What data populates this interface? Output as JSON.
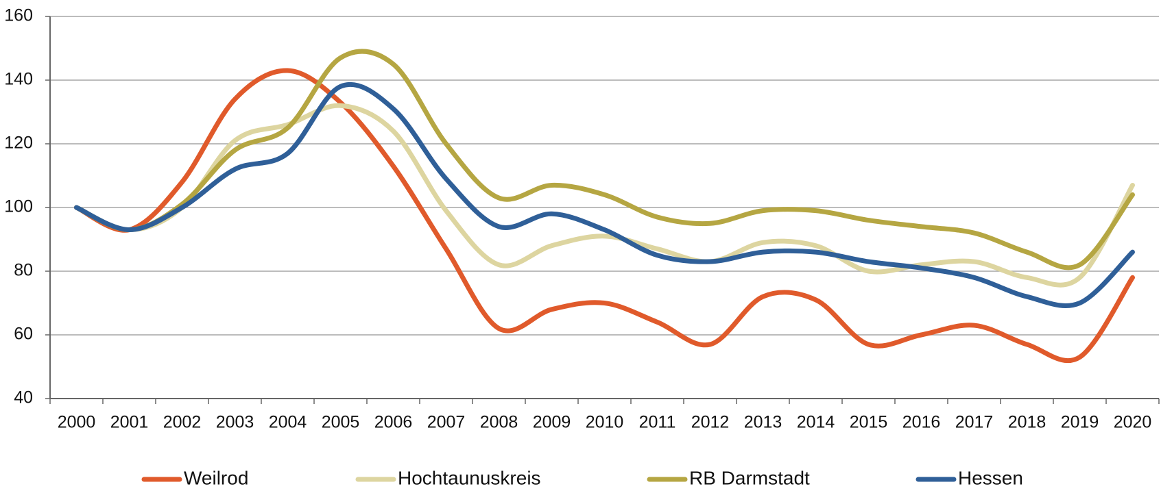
{
  "chart_data": {
    "type": "line",
    "categories": [
      "2000",
      "2001",
      "2002",
      "2003",
      "2004",
      "2005",
      "2006",
      "2007",
      "2008",
      "2009",
      "2010",
      "2011",
      "2012",
      "2013",
      "2014",
      "2015",
      "2016",
      "2017",
      "2018",
      "2019",
      "2020"
    ],
    "series": [
      {
        "name": "Weilrod",
        "color": "#e05a2b",
        "values": [
          100,
          93,
          108,
          134,
          143,
          133,
          113,
          87,
          62,
          68,
          70,
          64,
          57,
          72,
          71,
          57,
          60,
          63,
          57,
          53,
          78
        ]
      },
      {
        "name": "Hochtaunuskreis",
        "color": "#ddd5a0",
        "values": [
          100,
          93,
          100,
          121,
          126,
          132,
          124,
          99,
          82,
          88,
          91,
          87,
          83,
          89,
          88,
          80,
          82,
          83,
          78,
          78,
          107
        ]
      },
      {
        "name": "RB Darmstadt",
        "color": "#b5a642",
        "values": [
          100,
          93,
          101,
          118,
          125,
          147,
          145,
          120,
          103,
          107,
          104,
          97,
          95,
          99,
          99,
          96,
          94,
          92,
          86,
          82,
          104
        ]
      },
      {
        "name": "Hessen",
        "color": "#2f5f98",
        "values": [
          100,
          93,
          100,
          112,
          117,
          138,
          131,
          109,
          94,
          98,
          93,
          85,
          83,
          86,
          86,
          83,
          81,
          78,
          72,
          70,
          86
        ]
      }
    ],
    "ylim": [
      40,
      160
    ],
    "yticks": [
      40,
      60,
      80,
      100,
      120,
      140,
      160
    ],
    "grid": true,
    "legend": "bottom"
  }
}
